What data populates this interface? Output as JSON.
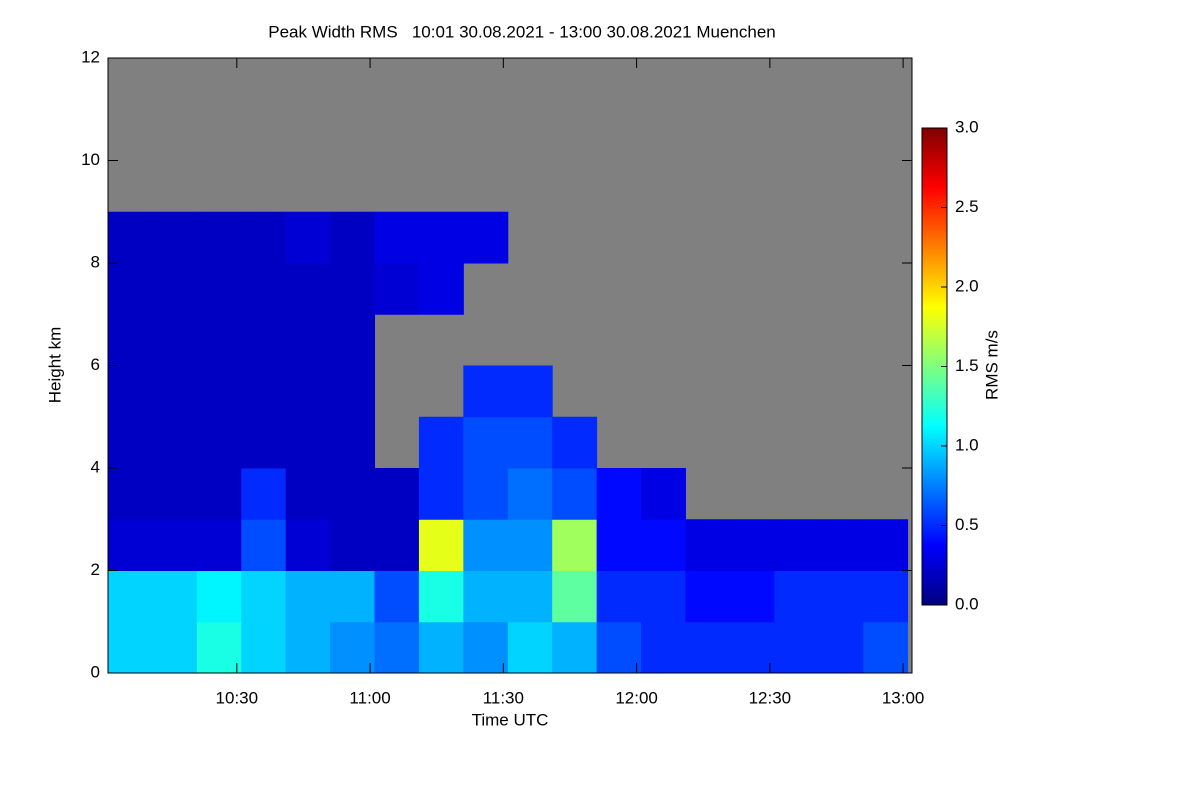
{
  "chart_data": {
    "type": "heatmap",
    "title": "Peak Width RMS   10:01 30.08.2021 - 13:00 30.08.2021 Muenchen",
    "x_label": "Time UTC",
    "y_label": "Height km",
    "x": [
      601,
      611,
      621,
      631,
      641,
      651,
      661,
      671,
      681,
      691,
      701,
      711,
      721,
      731,
      741,
      751,
      761,
      771,
      781
    ],
    "y": [
      0,
      1,
      2,
      3,
      4,
      5,
      6,
      7,
      8,
      9,
      10,
      11,
      12
    ],
    "z": [
      [
        1.0,
        1.0,
        1.2,
        1.0,
        0.9,
        0.8,
        0.7,
        0.9,
        0.8,
        1.0,
        0.9,
        0.6,
        0.5,
        0.5,
        0.5,
        0.5,
        0.5,
        0.6
      ],
      [
        1.0,
        1.0,
        1.1,
        1.0,
        0.9,
        0.9,
        0.6,
        1.2,
        0.9,
        0.9,
        1.4,
        0.5,
        0.5,
        0.4,
        0.4,
        0.5,
        0.5,
        0.5
      ],
      [
        0.25,
        0.25,
        0.25,
        0.6,
        0.25,
        0.2,
        0.2,
        1.8,
        0.8,
        0.8,
        1.6,
        0.4,
        0.4,
        0.3,
        0.3,
        0.3,
        0.3,
        0.3
      ],
      [
        0.2,
        0.2,
        0.2,
        0.5,
        0.2,
        0.2,
        0.2,
        0.5,
        0.6,
        0.7,
        0.6,
        0.4,
        0.3,
        null,
        null,
        null,
        null,
        null
      ],
      [
        0.2,
        0.2,
        0.2,
        0.2,
        0.2,
        0.2,
        null,
        0.5,
        0.6,
        0.6,
        0.5,
        null,
        null,
        null,
        null,
        null,
        null,
        null
      ],
      [
        0.2,
        0.2,
        0.2,
        0.2,
        0.2,
        0.2,
        null,
        null,
        0.5,
        0.5,
        null,
        null,
        null,
        null,
        null,
        null,
        null,
        null
      ],
      [
        0.2,
        0.2,
        0.2,
        0.2,
        0.2,
        0.2,
        null,
        null,
        null,
        null,
        null,
        null,
        null,
        null,
        null,
        null,
        null,
        null
      ],
      [
        0.2,
        0.2,
        0.2,
        0.2,
        0.2,
        0.2,
        0.25,
        0.3,
        null,
        null,
        null,
        null,
        null,
        null,
        null,
        null,
        null,
        null
      ],
      [
        0.2,
        0.2,
        0.2,
        0.2,
        0.25,
        0.2,
        0.3,
        0.3,
        0.3,
        null,
        null,
        null,
        null,
        null,
        null,
        null,
        null,
        null
      ],
      [
        null,
        null,
        null,
        null,
        null,
        null,
        null,
        null,
        null,
        null,
        null,
        null,
        null,
        null,
        null,
        null,
        null,
        null
      ],
      [
        null,
        null,
        null,
        null,
        null,
        null,
        null,
        null,
        null,
        null,
        null,
        null,
        null,
        null,
        null,
        null,
        null,
        null
      ],
      [
        null,
        null,
        null,
        null,
        null,
        null,
        null,
        null,
        null,
        null,
        null,
        null,
        null,
        null,
        null,
        null,
        null,
        null
      ]
    ],
    "xlim": [
      601,
      782
    ],
    "xticks": [
      {
        "value": 630,
        "label": "10:30"
      },
      {
        "value": 660,
        "label": "11:00"
      },
      {
        "value": 690,
        "label": "11:30"
      },
      {
        "value": 720,
        "label": "12:00"
      },
      {
        "value": 750,
        "label": "12:30"
      },
      {
        "value": 780,
        "label": "13:00"
      }
    ],
    "ylim": [
      0,
      12
    ],
    "yticks": [
      0,
      2,
      4,
      6,
      8,
      10,
      12
    ],
    "missing_color": "#808080",
    "colormap": [
      "#00007f",
      "#0000ff",
      "#007fff",
      "#00ffff",
      "#7fff7f",
      "#ffff00",
      "#ff7f00",
      "#ff0000",
      "#7f0000"
    ],
    "colorbar": {
      "label": "RMS m/s",
      "lim": [
        0,
        3
      ],
      "ticks": [
        {
          "value": 0,
          "label": "0.0"
        },
        0.5,
        {
          "value": 1,
          "label": "1.0"
        },
        1.5,
        {
          "value": 2,
          "label": "2.0"
        },
        2.5,
        {
          "value": 3,
          "label": "3.0"
        }
      ]
    }
  }
}
